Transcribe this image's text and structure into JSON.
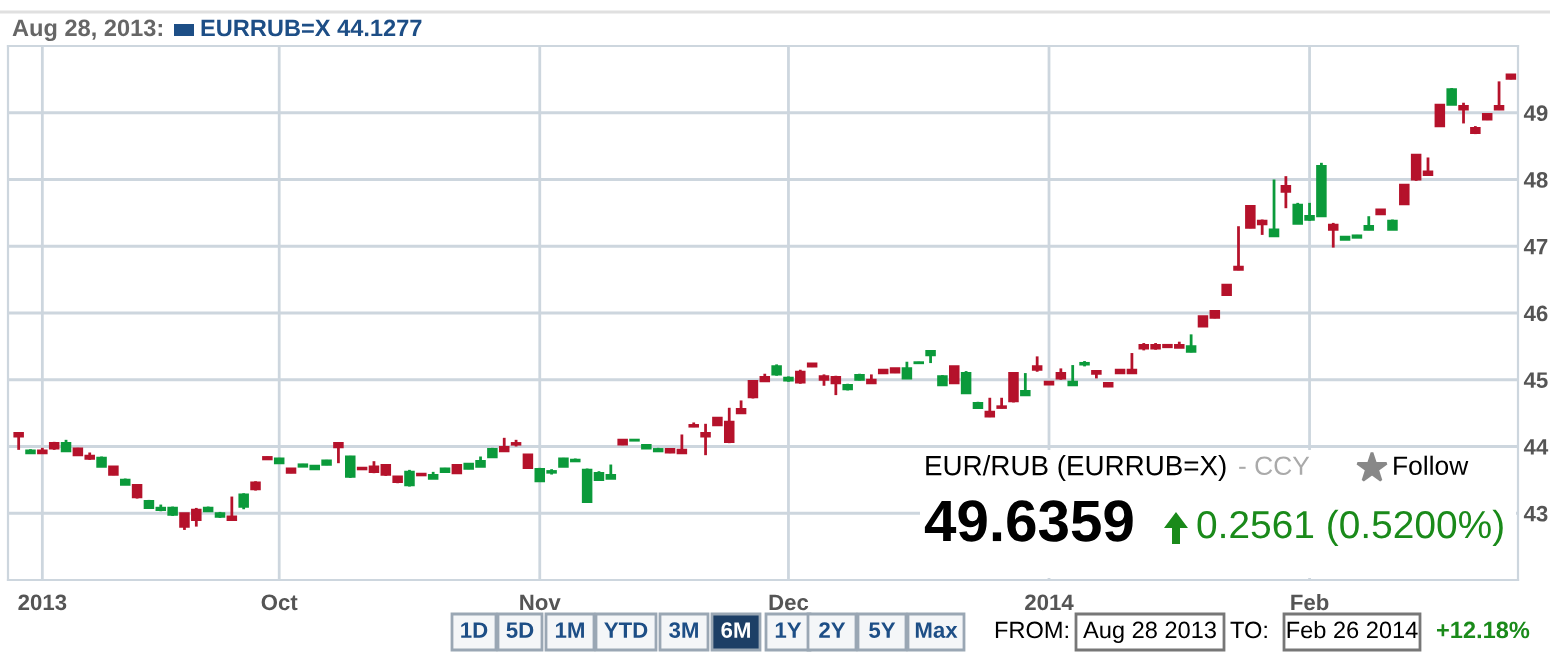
{
  "chart_data": {
    "type": "candlestick",
    "categories": [
      null,
      null,
      "2013",
      null,
      null,
      null,
      null,
      null,
      null,
      null,
      null,
      null,
      null,
      null,
      null,
      null,
      null,
      null,
      null,
      null,
      null,
      null,
      "Oct",
      null,
      null,
      null,
      null,
      null,
      null,
      null,
      null,
      null,
      null,
      null,
      null,
      null,
      null,
      null,
      null,
      null,
      null,
      null,
      null,
      null,
      "Nov",
      null,
      null,
      null,
      null,
      null,
      null,
      null,
      null,
      null,
      null,
      null,
      null,
      null,
      null,
      null,
      null,
      null,
      null,
      null,
      null,
      "Dec",
      null,
      null,
      null,
      null,
      null,
      null,
      null,
      null,
      null,
      null,
      null,
      null,
      null,
      null,
      null,
      null,
      null,
      null,
      null,
      null,
      null,
      "2014",
      null,
      null,
      null,
      null,
      null,
      null,
      null,
      null,
      null,
      null,
      null,
      null,
      null,
      null,
      null,
      null,
      null,
      null,
      null,
      null,
      null,
      "Feb",
      null,
      null,
      null,
      null,
      null,
      null,
      null,
      null,
      null,
      null,
      null,
      null,
      null,
      null,
      null,
      null,
      null
    ],
    "ohlc": [
      [
        44.2,
        44.2,
        43.95,
        44.15
      ],
      [
        43.9,
        43.96,
        43.9,
        43.94
      ],
      [
        43.94,
        43.98,
        43.9,
        43.9
      ],
      [
        44.05,
        44.07,
        43.95,
        43.97
      ],
      [
        43.93,
        44.1,
        43.92,
        44.05
      ],
      [
        43.97,
        43.98,
        43.86,
        43.87
      ],
      [
        43.86,
        43.91,
        43.8,
        43.82
      ],
      [
        43.7,
        43.85,
        43.7,
        43.83
      ],
      [
        43.7,
        43.7,
        43.57,
        43.58
      ],
      [
        43.43,
        43.52,
        43.43,
        43.5
      ],
      [
        43.42,
        43.43,
        43.22,
        43.24
      ],
      [
        43.08,
        43.2,
        43.07,
        43.18
      ],
      [
        43.05,
        43.13,
        43.03,
        43.08
      ],
      [
        42.98,
        43.1,
        42.96,
        43.08
      ],
      [
        43.0,
        43.0,
        42.75,
        42.8
      ],
      [
        43.05,
        43.08,
        42.8,
        42.9
      ],
      [
        43.03,
        43.1,
        43.02,
        43.08
      ],
      [
        42.95,
        43.02,
        42.93,
        43.0
      ],
      [
        42.95,
        43.25,
        42.89,
        42.9
      ],
      [
        43.1,
        43.3,
        43.06,
        43.28
      ],
      [
        43.46,
        43.48,
        43.34,
        43.36
      ],
      [
        43.84,
        43.85,
        43.8,
        43.81
      ],
      [
        43.75,
        43.83,
        43.75,
        43.82
      ],
      [
        43.67,
        43.67,
        43.6,
        43.61
      ],
      [
        43.7,
        43.74,
        43.7,
        43.73
      ],
      [
        43.66,
        43.72,
        43.65,
        43.71
      ],
      [
        43.73,
        43.8,
        43.72,
        43.79
      ],
      [
        44.05,
        44.05,
        43.75,
        43.99
      ],
      [
        43.55,
        43.86,
        43.53,
        43.85
      ],
      [
        43.68,
        43.68,
        43.65,
        43.66
      ],
      [
        43.7,
        43.78,
        43.6,
        43.62
      ],
      [
        43.72,
        43.72,
        43.56,
        43.58
      ],
      [
        43.55,
        43.55,
        43.45,
        43.47
      ],
      [
        43.42,
        43.65,
        43.4,
        43.62
      ],
      [
        43.59,
        43.6,
        43.56,
        43.57
      ],
      [
        43.52,
        43.62,
        43.52,
        43.57
      ],
      [
        43.62,
        43.68,
        43.62,
        43.67
      ],
      [
        43.72,
        43.72,
        43.59,
        43.6
      ],
      [
        43.67,
        43.75,
        43.66,
        43.74
      ],
      [
        43.7,
        43.85,
        43.7,
        43.78
      ],
      [
        43.84,
        43.98,
        43.83,
        43.96
      ],
      [
        43.99,
        44.13,
        43.92,
        43.93
      ],
      [
        44.05,
        44.1,
        44.0,
        44.03
      ],
      [
        43.88,
        43.88,
        43.67,
        43.68
      ],
      [
        43.48,
        43.68,
        43.48,
        43.66
      ],
      [
        43.61,
        43.66,
        43.58,
        43.63
      ],
      [
        43.7,
        43.83,
        43.7,
        43.82
      ],
      [
        43.78,
        43.82,
        43.78,
        43.8
      ],
      [
        43.17,
        43.67,
        43.17,
        43.65
      ],
      [
        43.5,
        43.63,
        43.5,
        43.6
      ],
      [
        43.52,
        43.73,
        43.52,
        43.57
      ],
      [
        44.1,
        44.1,
        44.02,
        44.03
      ],
      [
        44.09,
        44.11,
        44.09,
        44.1
      ],
      [
        43.97,
        44.03,
        43.97,
        44.02
      ],
      [
        43.93,
        43.98,
        43.93,
        43.96
      ],
      [
        43.96,
        43.96,
        43.9,
        43.91
      ],
      [
        43.95,
        44.18,
        43.9,
        43.9
      ],
      [
        44.32,
        44.36,
        44.29,
        44.3
      ],
      [
        44.2,
        44.34,
        43.87,
        44.15
      ],
      [
        44.43,
        44.43,
        44.31,
        44.32
      ],
      [
        44.37,
        44.58,
        44.05,
        44.07
      ],
      [
        44.56,
        44.69,
        44.5,
        44.5
      ],
      [
        44.98,
        44.98,
        44.72,
        44.74
      ],
      [
        45.04,
        45.09,
        44.97,
        44.98
      ],
      [
        45.08,
        45.23,
        45.06,
        45.2
      ],
      [
        44.99,
        45.05,
        44.97,
        45.03
      ],
      [
        45.12,
        45.15,
        44.94,
        44.96
      ],
      [
        45.24,
        45.25,
        45.19,
        45.2
      ],
      [
        45.05,
        45.08,
        44.91,
        45.0
      ],
      [
        45.04,
        45.06,
        44.77,
        44.95
      ],
      [
        44.86,
        44.94,
        44.84,
        44.92
      ],
      [
        45.0,
        45.09,
        44.99,
        45.07
      ],
      [
        45.0,
        45.08,
        44.95,
        44.95
      ],
      [
        45.15,
        45.15,
        45.09,
        45.1
      ],
      [
        45.17,
        45.17,
        45.1,
        45.11
      ],
      [
        45.02,
        45.27,
        45.02,
        45.17
      ],
      [
        45.25,
        45.27,
        45.24,
        45.26
      ],
      [
        45.37,
        45.43,
        45.25,
        45.43
      ],
      [
        44.92,
        45.07,
        44.92,
        45.05
      ],
      [
        45.2,
        45.2,
        44.94,
        44.95
      ],
      [
        44.8,
        45.13,
        44.8,
        45.1
      ],
      [
        44.58,
        44.67,
        44.58,
        44.65
      ],
      [
        44.52,
        44.73,
        44.44,
        44.45
      ],
      [
        44.6,
        44.73,
        44.57,
        44.58
      ],
      [
        45.1,
        45.1,
        44.66,
        44.68
      ],
      [
        44.77,
        45.1,
        44.76,
        44.83
      ],
      [
        45.2,
        45.35,
        45.12,
        45.15
      ],
      [
        44.97,
        44.98,
        44.93,
        44.93
      ],
      [
        45.1,
        45.17,
        45.0,
        45.02
      ],
      [
        44.92,
        45.22,
        44.92,
        44.97
      ],
      [
        45.23,
        45.28,
        45.2,
        45.25
      ],
      [
        45.13,
        45.13,
        45.02,
        45.09
      ],
      [
        44.95,
        44.95,
        44.89,
        44.9
      ],
      [
        45.15,
        45.15,
        45.1,
        45.1
      ],
      [
        45.15,
        45.4,
        45.1,
        45.1
      ],
      [
        45.52,
        45.55,
        45.44,
        45.47
      ],
      [
        45.52,
        45.55,
        45.45,
        45.47
      ],
      [
        45.52,
        45.52,
        45.48,
        45.49
      ],
      [
        45.52,
        45.57,
        45.48,
        45.48
      ],
      [
        45.42,
        45.68,
        45.41,
        45.5
      ],
      [
        45.95,
        45.95,
        45.79,
        45.8
      ],
      [
        46.03,
        46.03,
        45.92,
        45.93
      ],
      [
        46.42,
        46.42,
        46.26,
        46.27
      ],
      [
        46.69,
        47.3,
        46.64,
        46.65
      ],
      [
        47.6,
        47.6,
        47.27,
        47.28
      ],
      [
        47.38,
        47.4,
        47.17,
        47.33
      ],
      [
        47.15,
        48.0,
        47.14,
        47.25
      ],
      [
        47.9,
        48.05,
        47.57,
        47.82
      ],
      [
        47.34,
        47.65,
        47.34,
        47.62
      ],
      [
        47.4,
        47.65,
        47.38,
        47.45
      ],
      [
        47.45,
        48.25,
        47.45,
        48.2
      ],
      [
        47.32,
        47.35,
        46.98,
        47.25
      ],
      [
        47.1,
        47.15,
        47.1,
        47.14
      ],
      [
        47.13,
        47.17,
        47.13,
        47.16
      ],
      [
        47.25,
        47.45,
        47.24,
        47.3
      ],
      [
        47.55,
        47.55,
        47.47,
        47.48
      ],
      [
        47.25,
        47.4,
        47.25,
        47.38
      ],
      [
        47.92,
        47.92,
        47.62,
        47.63
      ],
      [
        48.37,
        48.37,
        47.98,
        48.0
      ],
      [
        48.12,
        48.33,
        48.07,
        48.07
      ],
      [
        49.12,
        49.12,
        48.79,
        48.8
      ],
      [
        49.12,
        49.37,
        49.12,
        49.35
      ],
      [
        49.1,
        49.15,
        48.84,
        49.05
      ],
      [
        48.77,
        48.8,
        48.68,
        48.7
      ],
      [
        48.98,
        48.98,
        48.89,
        48.9
      ],
      [
        49.1,
        49.47,
        49.04,
        49.05
      ],
      [
        49.57,
        49.58,
        49.5,
        49.51
      ]
    ],
    "ylim": [
      42,
      50
    ],
    "yticks": [
      43,
      44,
      45,
      46,
      47,
      48,
      49
    ],
    "grid": true,
    "annotations": [
      "Aug 28, 2013:",
      "EURRUB=X 44.1277",
      "EUR/RUB (EURRUB=X)",
      "- CCY",
      "Follow",
      "49.6359",
      "0.2561 (0.5200%)",
      "1D",
      "5D",
      "1M",
      "YTD",
      "3M",
      "6M",
      "1Y",
      "2Y",
      "5Y",
      "Max",
      "FROM:",
      "Aug 28 2013",
      "TO:",
      "Feb 26 2014",
      "+12.18%"
    ]
  }
}
